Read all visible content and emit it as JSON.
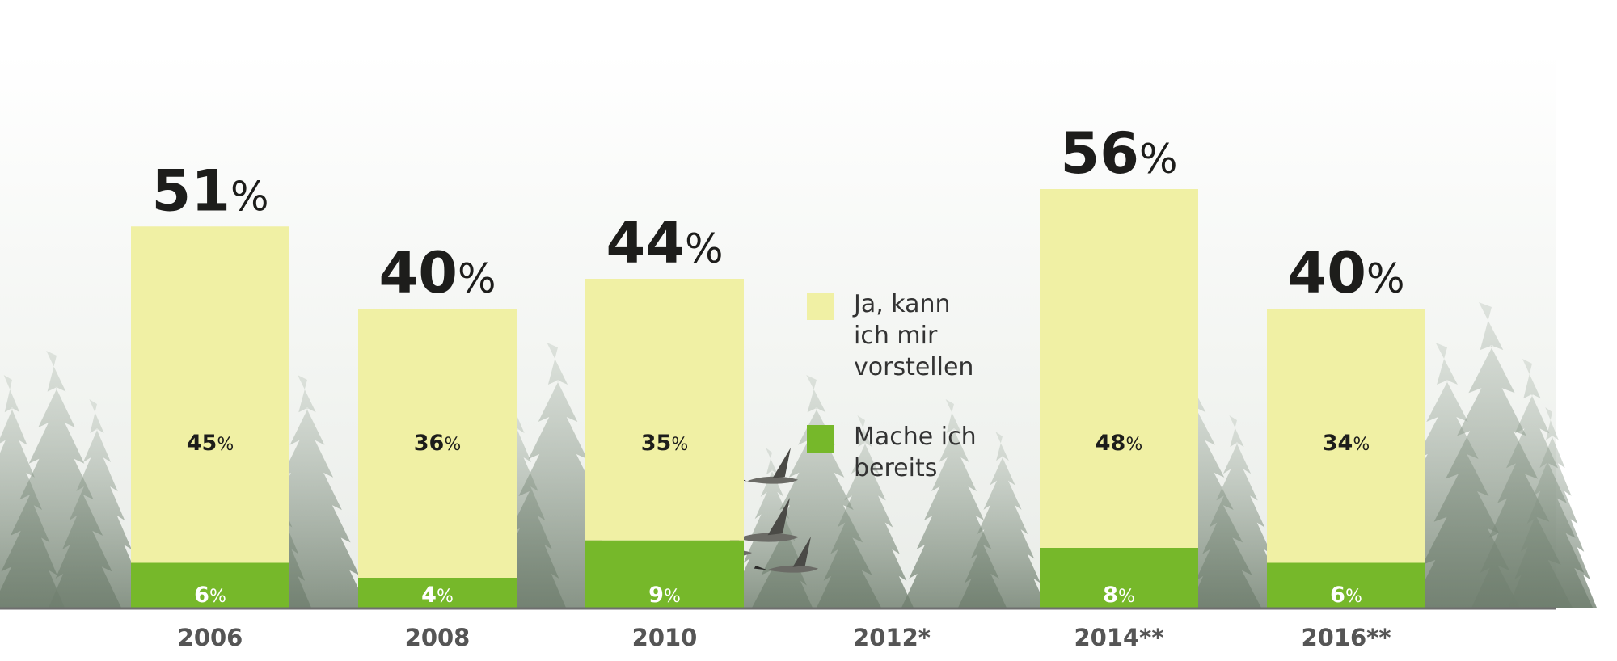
{
  "chart_data": {
    "type": "bar",
    "stacked": true,
    "categories": [
      "2006",
      "2008",
      "2010",
      "2012*",
      "2014**",
      "2016**"
    ],
    "totals": [
      51,
      40,
      44,
      null,
      56,
      40
    ],
    "series": [
      {
        "name": "Mache ich bereits",
        "values": [
          6,
          4,
          9,
          null,
          8,
          6
        ],
        "color": "#76b82a"
      },
      {
        "name": "Ja, kann ich mir vorstellen",
        "values": [
          45,
          36,
          35,
          null,
          48,
          34
        ],
        "color": "#f0f0a4"
      }
    ],
    "percent_sign": "%",
    "ylim": [
      0,
      60
    ],
    "grid": false,
    "legend": {
      "position": "center",
      "items": [
        {
          "lines": [
            "Ja, kann",
            "ich mir",
            "vorstellen"
          ],
          "color": "#f0f0a4"
        },
        {
          "lines": [
            "Mache ich",
            "bereits"
          ],
          "color": "#76b82a"
        }
      ]
    },
    "axis_color": "#6f6f6f"
  }
}
